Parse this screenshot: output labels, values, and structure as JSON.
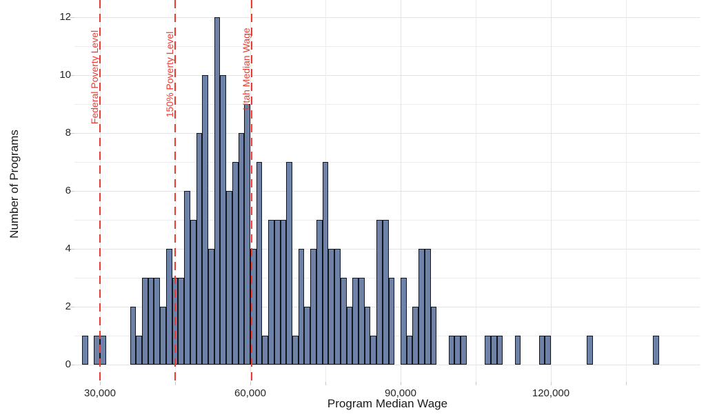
{
  "chart_data": {
    "type": "histogram",
    "title": "",
    "xlabel": "Program Median Wage",
    "ylabel": "Number of Programs",
    "bin_width": 1200,
    "bins": [
      [
        26400,
        1
      ],
      [
        28800,
        1
      ],
      [
        30000,
        1
      ],
      [
        36000,
        2
      ],
      [
        37200,
        1
      ],
      [
        38400,
        3
      ],
      [
        39600,
        3
      ],
      [
        40800,
        3
      ],
      [
        42000,
        2
      ],
      [
        43200,
        4
      ],
      [
        44400,
        3
      ],
      [
        45600,
        3
      ],
      [
        46800,
        6
      ],
      [
        48000,
        5
      ],
      [
        49200,
        8
      ],
      [
        50400,
        10
      ],
      [
        51600,
        4
      ],
      [
        52800,
        12
      ],
      [
        54000,
        10
      ],
      [
        55200,
        6
      ],
      [
        56400,
        7
      ],
      [
        57600,
        8
      ],
      [
        58800,
        9
      ],
      [
        60000,
        4
      ],
      [
        61200,
        7
      ],
      [
        62400,
        1
      ],
      [
        63600,
        5
      ],
      [
        64800,
        5
      ],
      [
        66000,
        5
      ],
      [
        67200,
        7
      ],
      [
        68400,
        1
      ],
      [
        69600,
        4
      ],
      [
        70800,
        2
      ],
      [
        72000,
        4
      ],
      [
        73200,
        5
      ],
      [
        74400,
        7
      ],
      [
        75600,
        4
      ],
      [
        76800,
        4
      ],
      [
        78000,
        3
      ],
      [
        79200,
        2
      ],
      [
        80400,
        3
      ],
      [
        81600,
        3
      ],
      [
        82800,
        2
      ],
      [
        84000,
        1
      ],
      [
        85200,
        5
      ],
      [
        86400,
        5
      ],
      [
        87600,
        3
      ],
      [
        90000,
        3
      ],
      [
        91200,
        1
      ],
      [
        92400,
        2
      ],
      [
        93600,
        4
      ],
      [
        94800,
        4
      ],
      [
        96000,
        2
      ],
      [
        99600,
        1
      ],
      [
        100800,
        1
      ],
      [
        102000,
        1
      ],
      [
        106800,
        1
      ],
      [
        108000,
        1
      ],
      [
        109200,
        1
      ],
      [
        112800,
        1
      ],
      [
        117600,
        1
      ],
      [
        118800,
        1
      ],
      [
        127200,
        1
      ],
      [
        140400,
        1
      ]
    ],
    "x_ticks": [
      30000,
      60000,
      90000,
      120000
    ],
    "x_tick_labels": [
      "30,000",
      "60,000",
      "90,000",
      "120,000"
    ],
    "x_minor_gridlines": [
      45000,
      75000,
      105000,
      135000
    ],
    "y_ticks": [
      0,
      2,
      4,
      6,
      8,
      10,
      12
    ],
    "y_minor_gridlines": [
      1,
      3,
      5,
      7,
      9,
      11
    ],
    "ylim": [
      0,
      12.6
    ],
    "xlim": [
      21000,
      147000
    ],
    "grid": true,
    "legend": "none",
    "reference_lines": [
      {
        "label": "Federal Poverty Level",
        "value": 30000
      },
      {
        "label": "150% Poverty Level",
        "value": 45000
      },
      {
        "label": "Utah Median Wage",
        "value": 60300
      }
    ],
    "colors": {
      "bar_fill": "#6e81a7",
      "bar_border": "#14141c",
      "reference_line": "#ee3b30",
      "major_gridline": "#e3e3e3",
      "minor_gridline": "#ededed",
      "tick_text": "#262626"
    }
  }
}
